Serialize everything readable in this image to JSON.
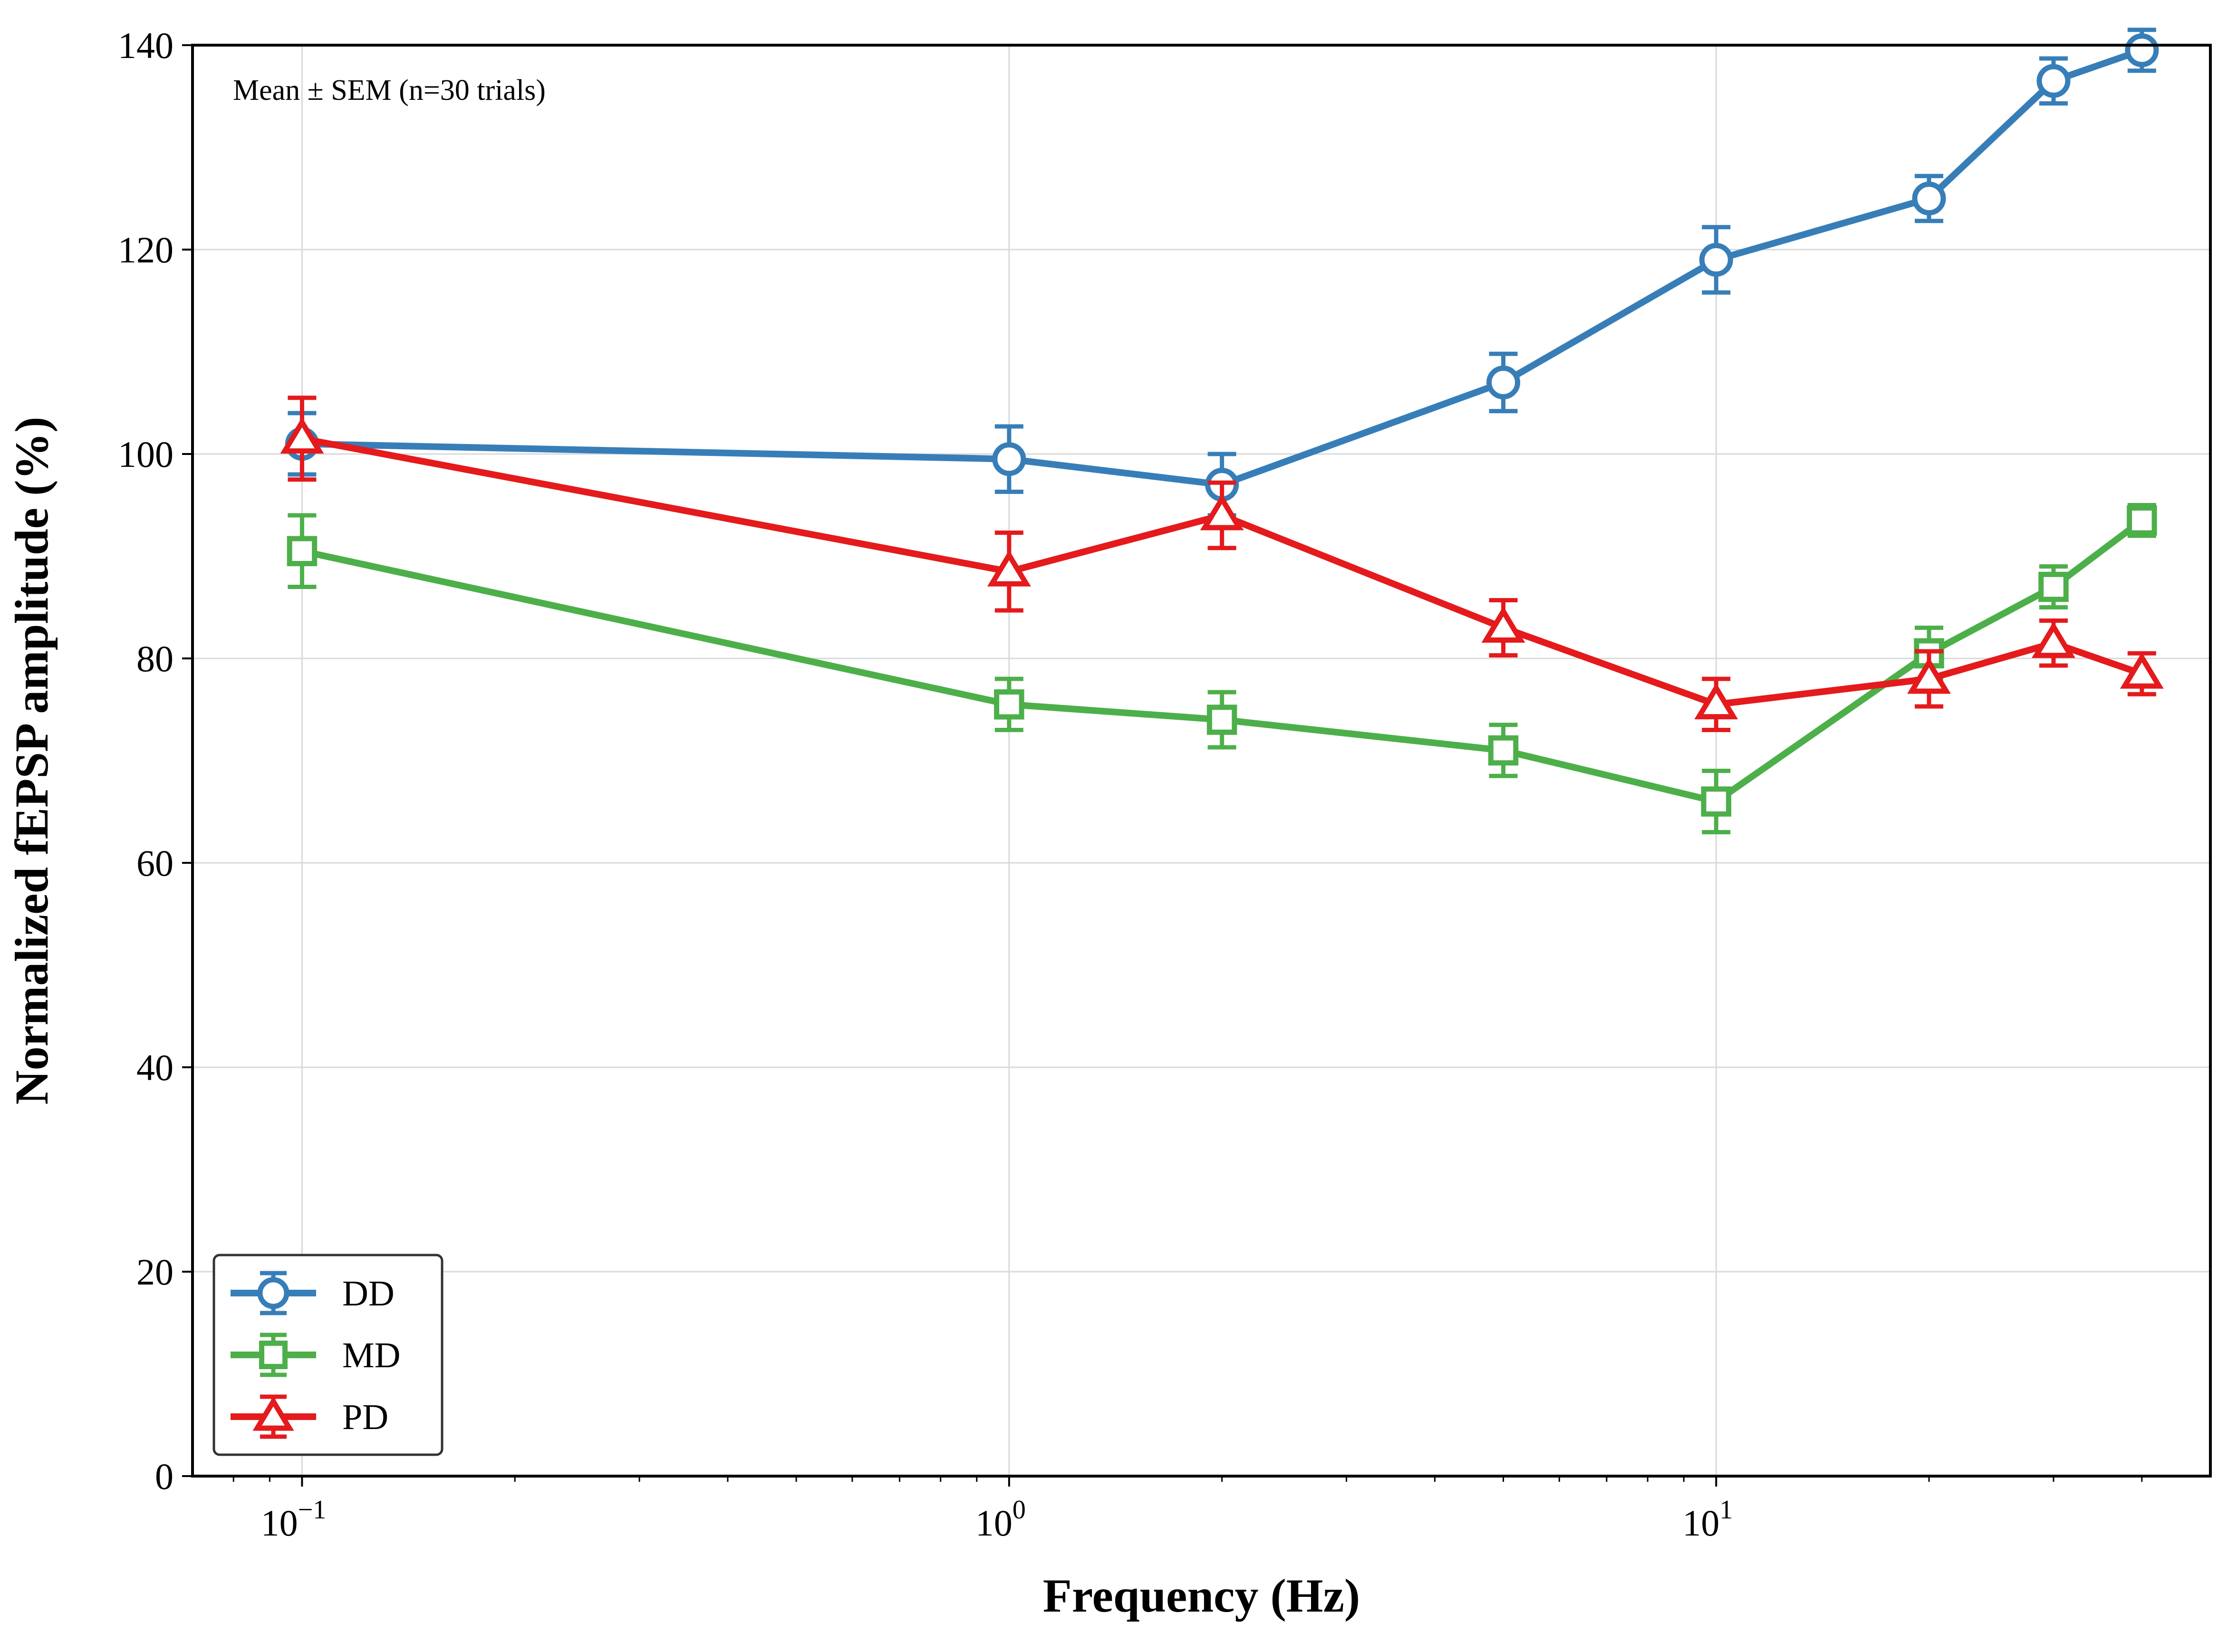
{
  "chart_data": {
    "type": "line",
    "xlabel": "Frequency (Hz)",
    "ylabel": "Normalized fEPSP amplitude (%)",
    "annotation": "Mean ± SEM (n=30 trials)",
    "xscale": "log",
    "xlim": [
      0.07,
      50
    ],
    "ylim": [
      0,
      140
    ],
    "grid": true,
    "legend_position": "lower left",
    "x": [
      0.1,
      1,
      2,
      5,
      10,
      20,
      30,
      40
    ],
    "xticks": [
      {
        "value": 0.1,
        "base": "10",
        "exp": "−1"
      },
      {
        "value": 1,
        "base": "10",
        "exp": "0"
      },
      {
        "value": 10,
        "base": "10",
        "exp": "1"
      }
    ],
    "yticks": [
      {
        "value": 0,
        "label": "0"
      },
      {
        "value": 20,
        "label": "20"
      },
      {
        "value": 40,
        "label": "40"
      },
      {
        "value": 60,
        "label": "60"
      },
      {
        "value": 80,
        "label": "80"
      },
      {
        "value": 100,
        "label": "100"
      },
      {
        "value": 120,
        "label": "120"
      },
      {
        "value": 140,
        "label": "140"
      }
    ],
    "series": [
      {
        "name": "DD",
        "color": "#377eb8",
        "marker": "circle",
        "values": [
          101,
          99.5,
          97,
          107,
          119,
          125,
          136.5,
          139.5
        ],
        "errors": [
          3,
          3.2,
          3,
          2.8,
          3.2,
          2.2,
          2.2,
          2
        ]
      },
      {
        "name": "MD",
        "color": "#4daf4a",
        "marker": "square",
        "values": [
          90.5,
          75.5,
          74,
          71,
          66,
          80.5,
          87,
          93.5
        ],
        "errors": [
          3.5,
          2.5,
          2.7,
          2.5,
          3,
          2.5,
          2,
          1.5
        ]
      },
      {
        "name": "PD",
        "color": "#e41a1c",
        "marker": "triangle",
        "values": [
          101.5,
          88.5,
          94,
          83,
          75.5,
          78,
          81.5,
          78.5
        ],
        "errors": [
          4,
          3.8,
          3.2,
          2.7,
          2.5,
          2.7,
          2.2,
          2
        ]
      }
    ]
  }
}
